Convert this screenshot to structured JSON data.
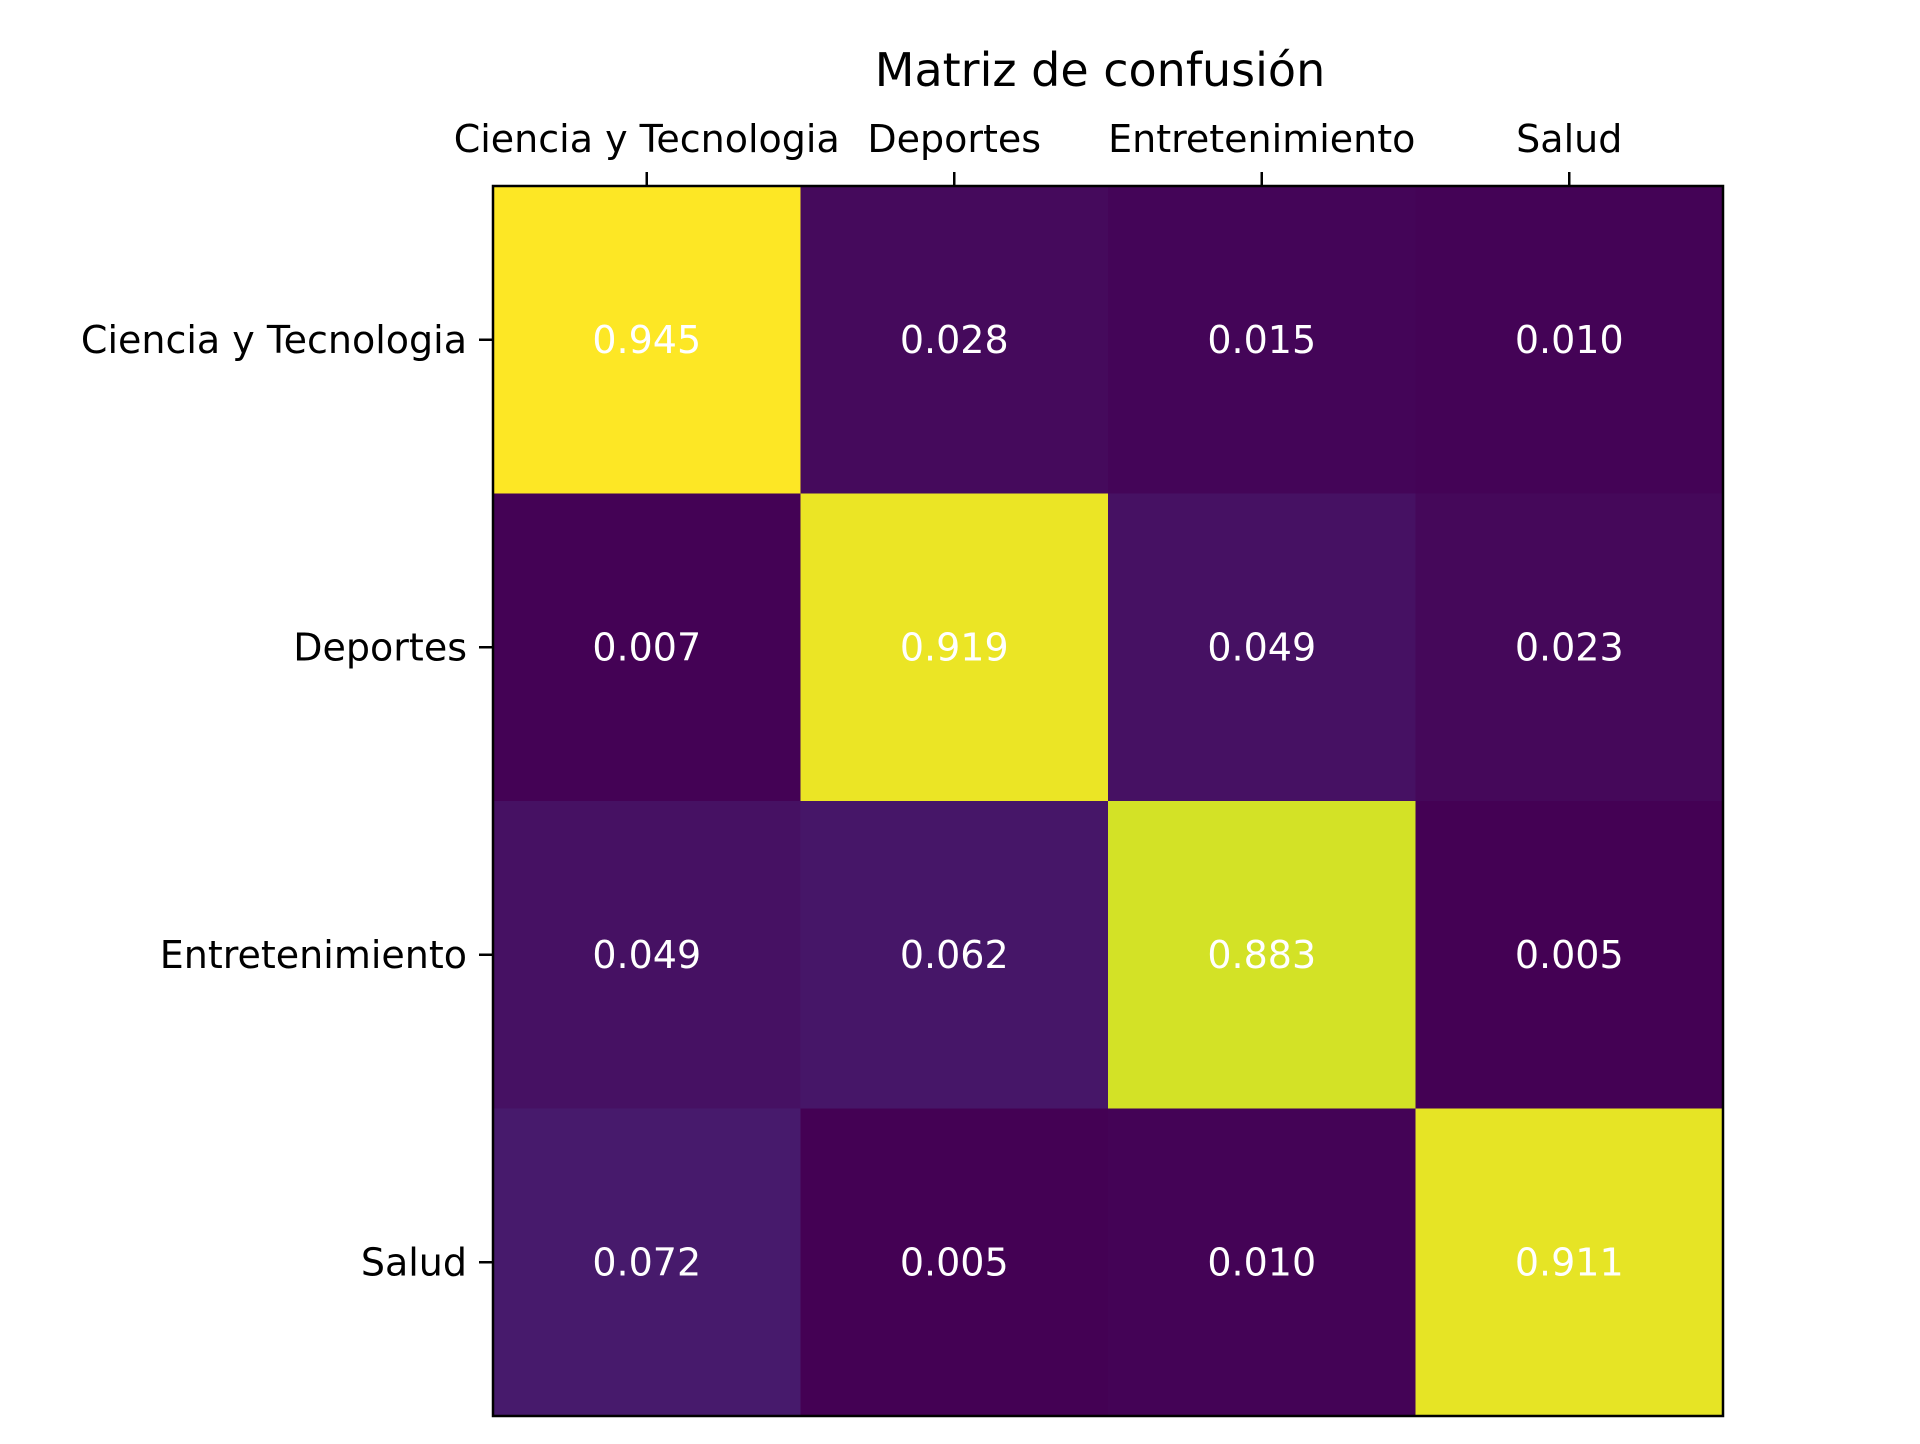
{
  "chart_data": {
    "type": "heatmap",
    "title": "Matriz de confusión",
    "x_categories": [
      "Ciencia y Tecnologia",
      "Deportes",
      "Entretenimiento",
      "Salud"
    ],
    "y_categories": [
      "Ciencia y Tecnologia",
      "Deportes",
      "Entretenimiento",
      "Salud"
    ],
    "x_tick_position": "top",
    "value_format": "3-decimals",
    "values": [
      [
        0.945,
        0.028,
        0.015,
        0.01
      ],
      [
        0.007,
        0.919,
        0.049,
        0.023
      ],
      [
        0.049,
        0.062,
        0.883,
        0.005
      ],
      [
        0.072,
        0.005,
        0.01,
        0.911
      ]
    ],
    "colormap": "viridis",
    "color_range": [
      0.005,
      0.945
    ],
    "grid": false,
    "legend": "none",
    "cell_text_color": "#ffffff",
    "frame_color": "#000000"
  }
}
